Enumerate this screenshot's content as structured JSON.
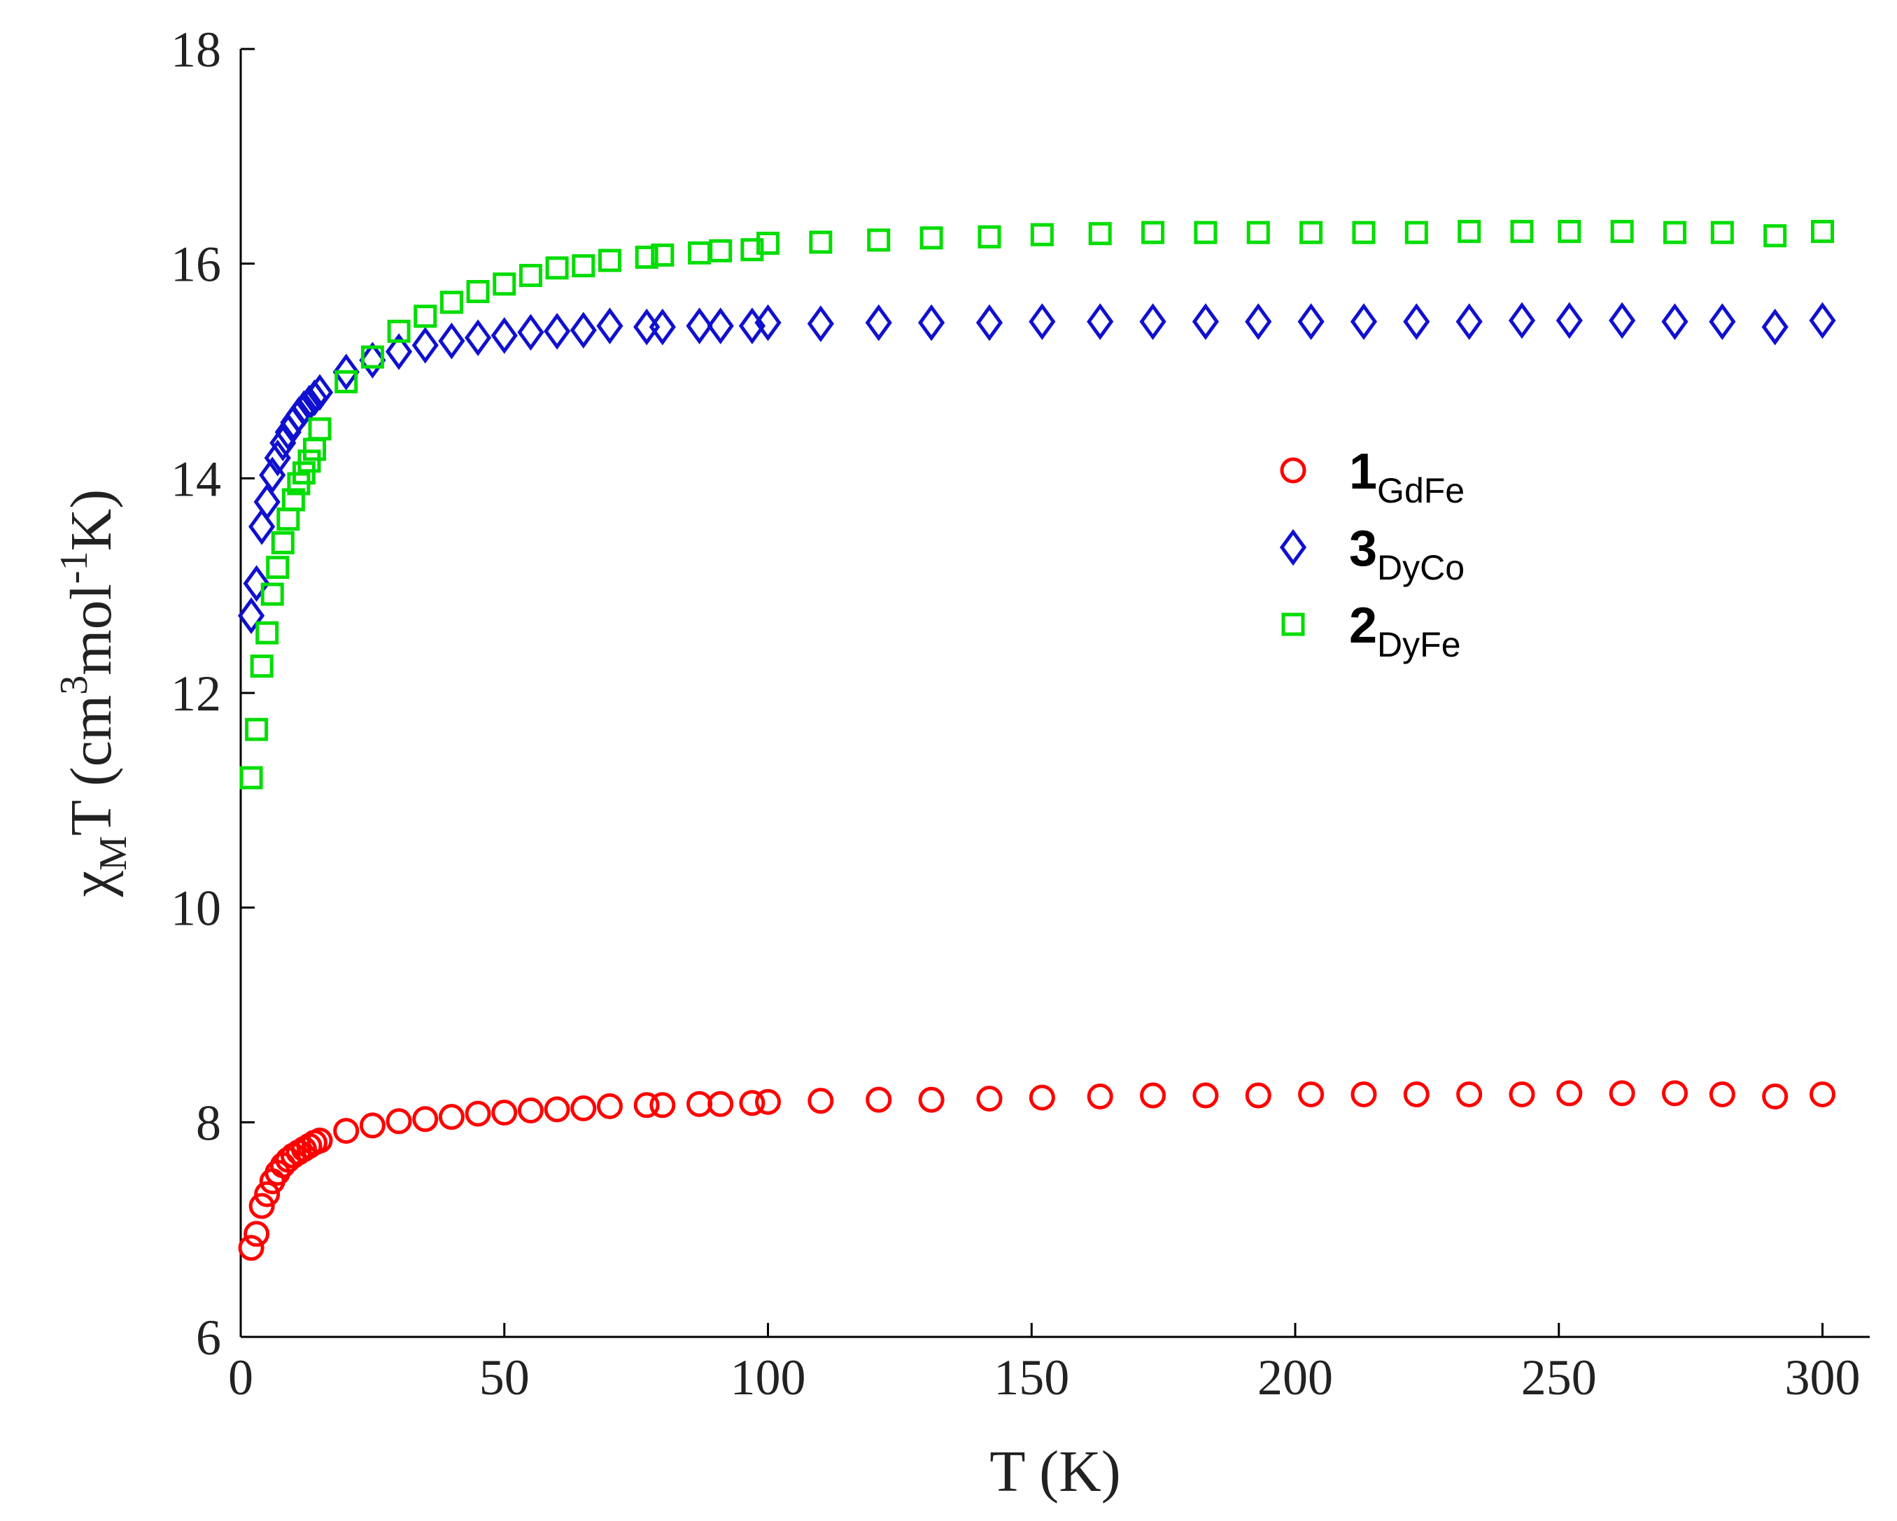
{
  "chart_data": {
    "type": "scatter",
    "title": "",
    "xlabel": "T (K)",
    "ylabel": {
      "chi": "χ",
      "chi_sub": "M",
      "base": "T (cm",
      "sup1": "3",
      "mid": "mol",
      "sup2": "-1",
      "end": "K)"
    },
    "xlim": [
      0,
      305
    ],
    "ylim": [
      6,
      18
    ],
    "xticks": [
      0,
      50,
      100,
      150,
      200,
      250,
      300
    ],
    "yticks": [
      6,
      8,
      10,
      12,
      14,
      16,
      18
    ],
    "legend_position": "center-right",
    "series": [
      {
        "name": "1GdFe",
        "label_main": "1",
        "label_sub": "GdFe",
        "marker": "circle",
        "color": "#ff0000",
        "points": [
          [
            2,
            6.83
          ],
          [
            3,
            6.96
          ],
          [
            4,
            7.22
          ],
          [
            5,
            7.33
          ],
          [
            6,
            7.45
          ],
          [
            7,
            7.53
          ],
          [
            8,
            7.6
          ],
          [
            9,
            7.65
          ],
          [
            10,
            7.69
          ],
          [
            11,
            7.72
          ],
          [
            12,
            7.75
          ],
          [
            13,
            7.78
          ],
          [
            14,
            7.81
          ],
          [
            15,
            7.83
          ],
          [
            20,
            7.92
          ],
          [
            25,
            7.97
          ],
          [
            30,
            8.01
          ],
          [
            35,
            8.03
          ],
          [
            40,
            8.05
          ],
          [
            45,
            8.08
          ],
          [
            50,
            8.09
          ],
          [
            55,
            8.11
          ],
          [
            60,
            8.12
          ],
          [
            65,
            8.13
          ],
          [
            70,
            8.15
          ],
          [
            77,
            8.16
          ],
          [
            80,
            8.16
          ],
          [
            87,
            8.17
          ],
          [
            91,
            8.17
          ],
          [
            97,
            8.18
          ],
          [
            100,
            8.19
          ],
          [
            110,
            8.2
          ],
          [
            121,
            8.21
          ],
          [
            131,
            8.21
          ],
          [
            142,
            8.22
          ],
          [
            152,
            8.23
          ],
          [
            163,
            8.24
          ],
          [
            173,
            8.25
          ],
          [
            183,
            8.25
          ],
          [
            193,
            8.25
          ],
          [
            203,
            8.26
          ],
          [
            213,
            8.26
          ],
          [
            223,
            8.26
          ],
          [
            233,
            8.26
          ],
          [
            243,
            8.26
          ],
          [
            252,
            8.27
          ],
          [
            262,
            8.27
          ],
          [
            272,
            8.27
          ],
          [
            281,
            8.26
          ],
          [
            291,
            8.24
          ],
          [
            300,
            8.26
          ]
        ]
      },
      {
        "name": "3DyCo",
        "label_main": "3",
        "label_sub": "DyCo",
        "marker": "diamond",
        "color": "#1010d0",
        "points": [
          [
            2,
            12.72
          ],
          [
            3,
            13.02
          ],
          [
            4,
            13.55
          ],
          [
            5,
            13.78
          ],
          [
            6,
            14.03
          ],
          [
            7,
            14.19
          ],
          [
            8,
            14.33
          ],
          [
            9,
            14.43
          ],
          [
            10,
            14.52
          ],
          [
            11,
            14.59
          ],
          [
            12,
            14.65
          ],
          [
            13,
            14.7
          ],
          [
            14,
            14.75
          ],
          [
            15,
            14.8
          ],
          [
            20,
            14.99
          ],
          [
            25,
            15.1
          ],
          [
            30,
            15.18
          ],
          [
            35,
            15.24
          ],
          [
            40,
            15.28
          ],
          [
            45,
            15.31
          ],
          [
            50,
            15.33
          ],
          [
            55,
            15.36
          ],
          [
            60,
            15.37
          ],
          [
            65,
            15.38
          ],
          [
            70,
            15.42
          ],
          [
            77,
            15.41
          ],
          [
            80,
            15.41
          ],
          [
            87,
            15.42
          ],
          [
            91,
            15.42
          ],
          [
            97,
            15.42
          ],
          [
            100,
            15.45
          ],
          [
            110,
            15.44
          ],
          [
            121,
            15.45
          ],
          [
            131,
            15.45
          ],
          [
            142,
            15.45
          ],
          [
            152,
            15.46
          ],
          [
            163,
            15.46
          ],
          [
            173,
            15.46
          ],
          [
            183,
            15.46
          ],
          [
            193,
            15.46
          ],
          [
            203,
            15.46
          ],
          [
            213,
            15.46
          ],
          [
            223,
            15.46
          ],
          [
            233,
            15.46
          ],
          [
            243,
            15.47
          ],
          [
            252,
            15.47
          ],
          [
            262,
            15.47
          ],
          [
            272,
            15.46
          ],
          [
            281,
            15.46
          ],
          [
            291,
            15.41
          ],
          [
            300,
            15.47
          ]
        ]
      },
      {
        "name": "2DyFe",
        "label_main": "2",
        "label_sub": "DyFe",
        "marker": "square",
        "color": "#00dd00",
        "points": [
          [
            2,
            11.21
          ],
          [
            3,
            11.66
          ],
          [
            4,
            12.25
          ],
          [
            5,
            12.56
          ],
          [
            6,
            12.92
          ],
          [
            7,
            13.17
          ],
          [
            8,
            13.4
          ],
          [
            9,
            13.62
          ],
          [
            10,
            13.8
          ],
          [
            11,
            13.95
          ],
          [
            12,
            14.05
          ],
          [
            13,
            14.16
          ],
          [
            14,
            14.27
          ],
          [
            15,
            14.46
          ],
          [
            20,
            14.9
          ],
          [
            25,
            15.13
          ],
          [
            30,
            15.37
          ],
          [
            35,
            15.51
          ],
          [
            40,
            15.64
          ],
          [
            45,
            15.74
          ],
          [
            50,
            15.81
          ],
          [
            55,
            15.89
          ],
          [
            60,
            15.96
          ],
          [
            65,
            15.98
          ],
          [
            70,
            16.03
          ],
          [
            77,
            16.06
          ],
          [
            80,
            16.08
          ],
          [
            87,
            16.1
          ],
          [
            91,
            16.12
          ],
          [
            97,
            16.13
          ],
          [
            100,
            16.19
          ],
          [
            110,
            16.2
          ],
          [
            121,
            16.22
          ],
          [
            131,
            16.24
          ],
          [
            142,
            16.25
          ],
          [
            152,
            16.27
          ],
          [
            163,
            16.28
          ],
          [
            173,
            16.29
          ],
          [
            183,
            16.29
          ],
          [
            193,
            16.29
          ],
          [
            203,
            16.29
          ],
          [
            213,
            16.29
          ],
          [
            223,
            16.29
          ],
          [
            233,
            16.3
          ],
          [
            243,
            16.3
          ],
          [
            252,
            16.3
          ],
          [
            262,
            16.3
          ],
          [
            272,
            16.29
          ],
          [
            281,
            16.29
          ],
          [
            291,
            16.26
          ],
          [
            300,
            16.3
          ]
        ]
      }
    ]
  }
}
